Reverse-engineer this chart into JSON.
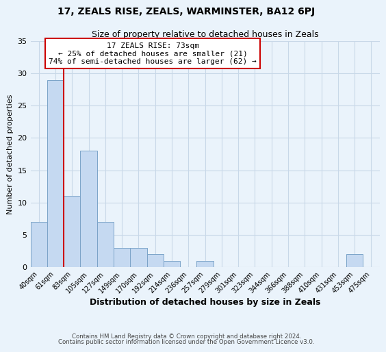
{
  "title": "17, ZEALS RISE, ZEALS, WARMINSTER, BA12 6PJ",
  "subtitle": "Size of property relative to detached houses in Zeals",
  "xlabel": "Distribution of detached houses by size in Zeals",
  "ylabel": "Number of detached properties",
  "footer_line1": "Contains HM Land Registry data © Crown copyright and database right 2024.",
  "footer_line2": "Contains public sector information licensed under the Open Government Licence v3.0.",
  "bin_labels": [
    "40sqm",
    "61sqm",
    "83sqm",
    "105sqm",
    "127sqm",
    "149sqm",
    "170sqm",
    "192sqm",
    "214sqm",
    "236sqm",
    "257sqm",
    "279sqm",
    "301sqm",
    "323sqm",
    "344sqm",
    "366sqm",
    "388sqm",
    "410sqm",
    "431sqm",
    "453sqm",
    "475sqm"
  ],
  "bar_values": [
    7,
    29,
    11,
    18,
    7,
    3,
    3,
    2,
    1,
    0,
    1,
    0,
    0,
    0,
    0,
    0,
    0,
    0,
    0,
    2,
    0
  ],
  "bar_color": "#c5d9f1",
  "bar_edge_color": "#7ba3c8",
  "vline_color": "#cc0000",
  "vline_pos": 1.5,
  "ylim": [
    0,
    35
  ],
  "yticks": [
    0,
    5,
    10,
    15,
    20,
    25,
    30,
    35
  ],
  "annotation_title": "17 ZEALS RISE: 73sqm",
  "annotation_line1": "← 25% of detached houses are smaller (21)",
  "annotation_line2": "74% of semi-detached houses are larger (62) →",
  "annotation_box_facecolor": "#ffffff",
  "annotation_box_edgecolor": "#cc0000",
  "grid_color": "#c8d8e8",
  "background_color": "#eaf3fb",
  "title_fontsize": 10,
  "subtitle_fontsize": 9
}
